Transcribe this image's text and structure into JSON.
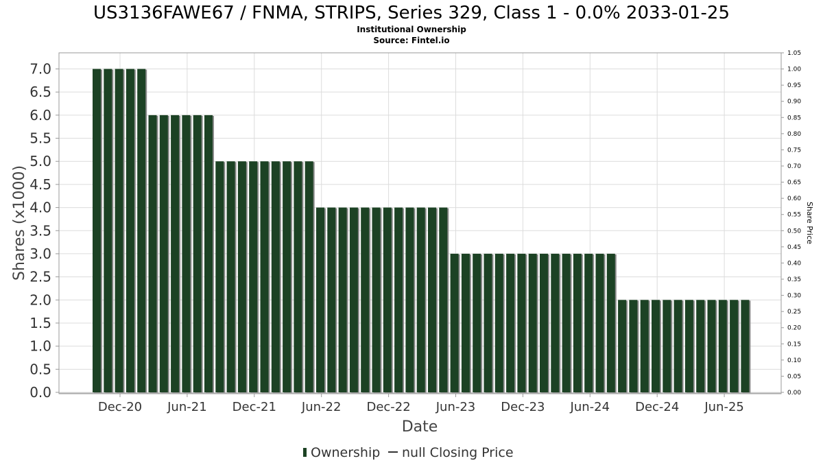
{
  "header": {
    "title": "US3136FAWE67 / FNMA, STRIPS, Series 329, Class 1 - 0.0% 2033-01-25",
    "subtitle": "Institutional Ownership",
    "source": "Source: Fintel.io"
  },
  "legend": {
    "ownership_label": "Ownership",
    "price_label": "null Closing Price"
  },
  "colors": {
    "bar": "#1c4224",
    "shadow": "#8a8a8a",
    "grid": "#dcdcdc"
  },
  "chart_data": {
    "type": "bar",
    "xlabel": "Date",
    "ylabel": "Shares (x1000)",
    "y2label": "Share Price",
    "ylim": [
      0,
      7.35
    ],
    "y2lim": [
      0,
      1.05
    ],
    "yticks": [
      0.0,
      0.5,
      1.0,
      1.5,
      2.0,
      2.5,
      3.0,
      3.5,
      4.0,
      4.5,
      5.0,
      5.5,
      6.0,
      6.5,
      7.0
    ],
    "ytick_labels": [
      "0.0",
      "0.5",
      "1.0",
      "1.5",
      "2.0",
      "2.5",
      "3.0",
      "3.5",
      "4.0",
      "4.5",
      "5.0",
      "5.5",
      "6.0",
      "6.5",
      "7.0"
    ],
    "y2ticks": [
      0.0,
      0.05,
      0.1,
      0.15,
      0.2,
      0.25,
      0.3,
      0.35,
      0.4,
      0.45,
      0.5,
      0.55,
      0.6,
      0.65,
      0.7,
      0.75,
      0.8,
      0.85,
      0.9,
      0.95,
      1.0,
      1.05
    ],
    "y2tick_labels": [
      "0.00",
      "0.05",
      "0.10",
      "0.15",
      "0.20",
      "0.25",
      "0.30",
      "0.35",
      "0.40",
      "0.45",
      "0.50",
      "0.55",
      "0.60",
      "0.65",
      "0.70",
      "0.75",
      "0.80",
      "0.85",
      "0.90",
      "0.95",
      "1.00",
      "1.05"
    ],
    "xtick_labels": [
      "Dec-20",
      "Jun-21",
      "Dec-21",
      "Jun-22",
      "Dec-22",
      "Jun-23",
      "Dec-23",
      "Jun-24",
      "Dec-24",
      "Jun-25"
    ],
    "grid": true,
    "legend_position": "bottom-center",
    "series": [
      {
        "name": "Ownership",
        "values": [
          7.0,
          7.0,
          7.0,
          7.0,
          7.0,
          6.0,
          6.0,
          6.0,
          6.0,
          6.0,
          6.0,
          5.0,
          5.0,
          5.0,
          5.0,
          5.0,
          5.0,
          5.0,
          5.0,
          5.0,
          4.0,
          4.0,
          4.0,
          4.0,
          4.0,
          4.0,
          4.0,
          4.0,
          4.0,
          4.0,
          4.0,
          4.0,
          3.0,
          3.0,
          3.0,
          3.0,
          3.0,
          3.0,
          3.0,
          3.0,
          3.0,
          3.0,
          3.0,
          3.0,
          3.0,
          3.0,
          3.0,
          2.0,
          2.0,
          2.0,
          2.0,
          2.0,
          2.0,
          2.0,
          2.0,
          2.0,
          2.0,
          2.0,
          2.0
        ]
      }
    ]
  }
}
